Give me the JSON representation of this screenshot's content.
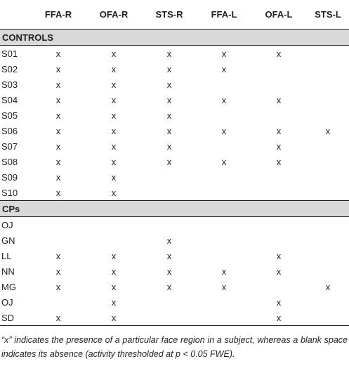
{
  "columns": [
    "",
    "FFA-R",
    "OFA-R",
    "STS-R",
    "FFA-L",
    "OFA-L",
    "STS-L"
  ],
  "groups": [
    {
      "label": "CONTROLS",
      "rows": [
        {
          "subject": "S01",
          "cells": [
            "x",
            "x",
            "x",
            "x",
            "x",
            ""
          ]
        },
        {
          "subject": "S02",
          "cells": [
            "x",
            "x",
            "x",
            "x",
            "",
            ""
          ]
        },
        {
          "subject": "S03",
          "cells": [
            "x",
            "x",
            "x",
            "",
            "",
            ""
          ]
        },
        {
          "subject": "S04",
          "cells": [
            "x",
            "x",
            "x",
            "x",
            "x",
            ""
          ]
        },
        {
          "subject": "S05",
          "cells": [
            "x",
            "x",
            "x",
            "",
            "",
            ""
          ]
        },
        {
          "subject": "S06",
          "cells": [
            "x",
            "x",
            "x",
            "x",
            "x",
            "x"
          ]
        },
        {
          "subject": "S07",
          "cells": [
            "x",
            "x",
            "x",
            "",
            "x",
            ""
          ]
        },
        {
          "subject": "S08",
          "cells": [
            "x",
            "x",
            "x",
            "x",
            "x",
            ""
          ]
        },
        {
          "subject": "S09",
          "cells": [
            "x",
            "x",
            "",
            "",
            "",
            ""
          ]
        },
        {
          "subject": "S10",
          "cells": [
            "x",
            "x",
            "",
            "",
            "",
            ""
          ]
        }
      ]
    },
    {
      "label": "CPs",
      "rows": [
        {
          "subject": "OJ",
          "cells": [
            "",
            "",
            "",
            "",
            "",
            ""
          ]
        },
        {
          "subject": "GN",
          "cells": [
            "",
            "",
            "x",
            "",
            "",
            ""
          ]
        },
        {
          "subject": "LL",
          "cells": [
            "x",
            "x",
            "x",
            "",
            "x",
            ""
          ]
        },
        {
          "subject": "NN",
          "cells": [
            "x",
            "x",
            "x",
            "x",
            "x",
            ""
          ]
        },
        {
          "subject": "MG",
          "cells": [
            "x",
            "x",
            "x",
            "x",
            "",
            "x"
          ]
        },
        {
          "subject": "OJ",
          "cells": [
            "",
            "x",
            "",
            "",
            "x",
            ""
          ]
        },
        {
          "subject": "SD",
          "cells": [
            "x",
            "x",
            "",
            "",
            "x",
            ""
          ]
        }
      ]
    }
  ],
  "footnote": "“x” indicates the presence of a particular face region in a subject, whereas a blank space indicates its absence (activity thresholded at p < 0.05 FWE)."
}
